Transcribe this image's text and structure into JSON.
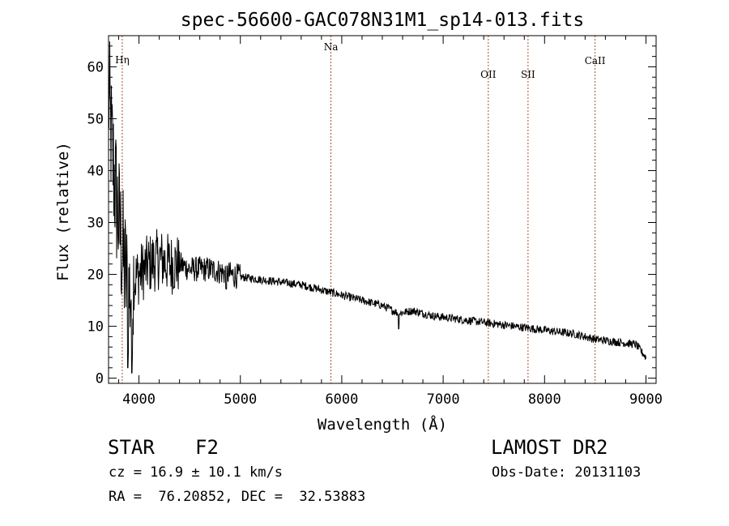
{
  "chart_data": {
    "type": "line",
    "title": "spec-56600-GAC078N31M1_sp14-013.fits",
    "xlabel": "Wavelength (Å)",
    "ylabel": "Flux (relative)",
    "xlim": [
      3700,
      9100
    ],
    "ylim": [
      -1,
      66
    ],
    "xticks": [
      4000,
      5000,
      6000,
      7000,
      8000,
      9000
    ],
    "yticks": [
      0,
      10,
      20,
      30,
      40,
      50,
      60
    ],
    "grid": false,
    "series": [
      {
        "x": [
          3700,
          3730,
          3760,
          3790,
          3820,
          3850,
          3880,
          3900,
          3950,
          4000,
          4100,
          4200,
          4300,
          4400,
          4500,
          4600,
          4700,
          4800,
          4900,
          5000,
          5200,
          5400,
          5600,
          5800,
          5900,
          6000,
          6200,
          6400,
          6560,
          6700,
          6900,
          7100,
          7300,
          7500,
          7700,
          7900,
          8100,
          8300,
          8500,
          8700,
          8900,
          9000
        ],
        "values": [
          55,
          45,
          38,
          32,
          27,
          22,
          18,
          16,
          19,
          20,
          22,
          23,
          22,
          22,
          21,
          21,
          21,
          20.5,
          20,
          19.5,
          19,
          18.5,
          18,
          17,
          16.5,
          16,
          15,
          14,
          12.5,
          13,
          12,
          11.5,
          11,
          10.5,
          10,
          9.5,
          9,
          8.5,
          7.5,
          7,
          6.5,
          4
        ]
      }
    ],
    "lines": [
      {
        "label": "Hη",
        "x": 3835
      },
      {
        "label": "Na",
        "x": 5893
      },
      {
        "label": "OII",
        "x": 7445
      },
      {
        "label": "SII",
        "x": 7837
      },
      {
        "label": "CaII",
        "x": 8498
      }
    ],
    "line_color": "#a0522d"
  },
  "info": {
    "object_type": "STAR",
    "subclass": "F2",
    "survey": "LAMOST DR2",
    "cz": "cz = 16.9 ± 10.1 km/s",
    "obs_date": "Obs-Date: 20131103",
    "radec": "RA =  76.20852, DEC =  32.53883"
  }
}
